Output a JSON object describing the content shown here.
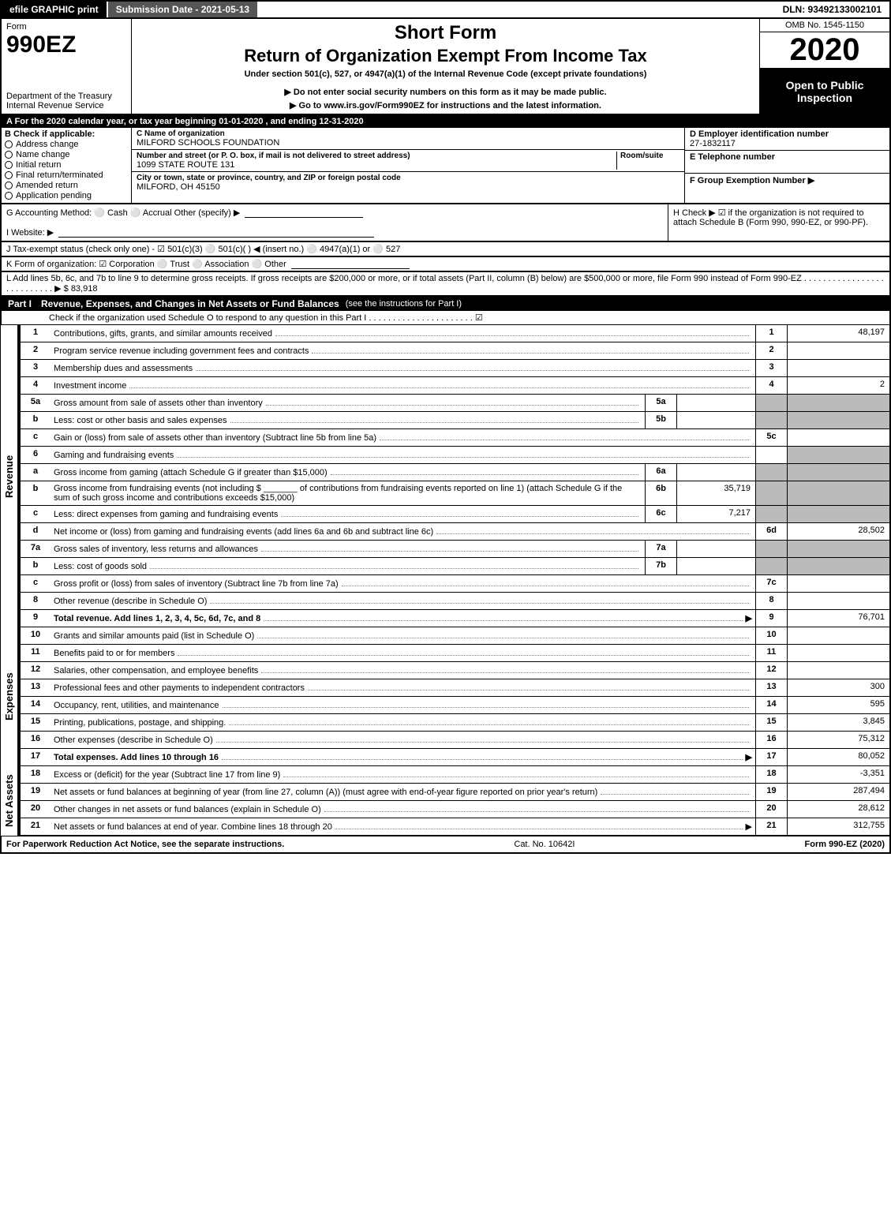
{
  "topbar": {
    "efile": "efile GRAPHIC print",
    "subdate_label": "Submission Date - 2021-05-13",
    "dln": "DLN: 93492133002101"
  },
  "header": {
    "form_word": "Form",
    "form_num": "990EZ",
    "dept": "Department of the Treasury",
    "irs": "Internal Revenue Service",
    "short": "Short Form",
    "title": "Return of Organization Exempt From Income Tax",
    "sub1": "Under section 501(c), 527, or 4947(a)(1) of the Internal Revenue Code (except private foundations)",
    "sub2": "▶ Do not enter social security numbers on this form as it may be made public.",
    "sub3": "▶ Go to www.irs.gov/Form990EZ for instructions and the latest information.",
    "omb": "OMB No. 1545-1150",
    "year": "2020",
    "open": "Open to Public Inspection"
  },
  "period": "A  For the 2020 calendar year, or tax year beginning 01-01-2020 , and ending 12-31-2020",
  "box_b": {
    "title": "B  Check if applicable:",
    "items": [
      "Address change",
      "Name change",
      "Initial return",
      "Final return/terminated",
      "Amended return",
      "Application pending"
    ]
  },
  "box_c": {
    "name_lbl": "C Name of organization",
    "name": "MILFORD SCHOOLS FOUNDATION",
    "addr_lbl": "Number and street (or P. O. box, if mail is not delivered to street address)",
    "room_lbl": "Room/suite",
    "addr": "1099 STATE ROUTE 131",
    "city_lbl": "City or town, state or province, country, and ZIP or foreign postal code",
    "city": "MILFORD, OH  45150"
  },
  "box_d": {
    "ein_lbl": "D Employer identification number",
    "ein": "27-1832117",
    "tel_lbl": "E Telephone number",
    "grp_lbl": "F Group Exemption Number  ▶"
  },
  "line_g": "G Accounting Method:   ⚪ Cash  ⚪ Accrual   Other (specify) ▶",
  "line_h": "H  Check ▶ ☑ if the organization is not required to attach Schedule B (Form 990, 990-EZ, or 990-PF).",
  "line_i": "I Website: ▶",
  "line_j": "J Tax-exempt status (check only one) - ☑ 501(c)(3) ⚪ 501(c)( ) ◀ (insert no.) ⚪ 4947(a)(1) or ⚪ 527",
  "line_k": "K Form of organization:   ☑ Corporation  ⚪ Trust  ⚪ Association  ⚪ Other",
  "line_l": "L Add lines 5b, 6c, and 7b to line 9 to determine gross receipts. If gross receipts are $200,000 or more, or if total assets (Part II, column (B) below) are $500,000 or more, file Form 990 instead of Form 990-EZ . . . . . . . . . . . . . . . . . . . . . . . . . . . ▶ $ 83,918",
  "part1": {
    "label": "Part I",
    "title": "Revenue, Expenses, and Changes in Net Assets or Fund Balances",
    "desc": "(see the instructions for Part I)",
    "schedO": "Check if the organization used Schedule O to respond to any question in this Part I . . . . . . . . . . . . . . . . . . . . . . ☑"
  },
  "sections": [
    {
      "side": "Revenue",
      "rows": [
        {
          "n": "1",
          "d": "Contributions, gifts, grants, and similar amounts received",
          "vn": "1",
          "v": "48,197"
        },
        {
          "n": "2",
          "d": "Program service revenue including government fees and contracts",
          "vn": "2",
          "v": ""
        },
        {
          "n": "3",
          "d": "Membership dues and assessments",
          "vn": "3",
          "v": ""
        },
        {
          "n": "4",
          "d": "Investment income",
          "vn": "4",
          "v": "2"
        },
        {
          "n": "5a",
          "d": "Gross amount from sale of assets other than inventory",
          "sn": "5a",
          "sv": "",
          "shade": true
        },
        {
          "n": "b",
          "d": "Less: cost or other basis and sales expenses",
          "sn": "5b",
          "sv": "",
          "shade": true
        },
        {
          "n": "c",
          "d": "Gain or (loss) from sale of assets other than inventory (Subtract line 5b from line 5a)",
          "vn": "5c",
          "v": ""
        },
        {
          "n": "6",
          "d": "Gaming and fundraising events",
          "shade": true,
          "blank": true
        },
        {
          "n": "a",
          "d": "Gross income from gaming (attach Schedule G if greater than $15,000)",
          "sn": "6a",
          "sv": "",
          "shade": true
        },
        {
          "n": "b",
          "d": "Gross income from fundraising events (not including $ _______ of contributions from fundraising events reported on line 1) (attach Schedule G if the sum of such gross income and contributions exceeds $15,000)",
          "sn": "6b",
          "sv": "35,719",
          "shade": true
        },
        {
          "n": "c",
          "d": "Less: direct expenses from gaming and fundraising events",
          "sn": "6c",
          "sv": "7,217",
          "shade": true
        },
        {
          "n": "d",
          "d": "Net income or (loss) from gaming and fundraising events (add lines 6a and 6b and subtract line 6c)",
          "vn": "6d",
          "v": "28,502"
        },
        {
          "n": "7a",
          "d": "Gross sales of inventory, less returns and allowances",
          "sn": "7a",
          "sv": "",
          "shade": true
        },
        {
          "n": "b",
          "d": "Less: cost of goods sold",
          "sn": "7b",
          "sv": "",
          "shade": true
        },
        {
          "n": "c",
          "d": "Gross profit or (loss) from sales of inventory (Subtract line 7b from line 7a)",
          "vn": "7c",
          "v": ""
        },
        {
          "n": "8",
          "d": "Other revenue (describe in Schedule O)",
          "vn": "8",
          "v": ""
        },
        {
          "n": "9",
          "d": "Total revenue. Add lines 1, 2, 3, 4, 5c, 6d, 7c, and 8",
          "vn": "9",
          "v": "76,701",
          "bold": true,
          "arrow": true
        }
      ]
    },
    {
      "side": "Expenses",
      "rows": [
        {
          "n": "10",
          "d": "Grants and similar amounts paid (list in Schedule O)",
          "vn": "10",
          "v": ""
        },
        {
          "n": "11",
          "d": "Benefits paid to or for members",
          "vn": "11",
          "v": ""
        },
        {
          "n": "12",
          "d": "Salaries, other compensation, and employee benefits",
          "vn": "12",
          "v": ""
        },
        {
          "n": "13",
          "d": "Professional fees and other payments to independent contractors",
          "vn": "13",
          "v": "300"
        },
        {
          "n": "14",
          "d": "Occupancy, rent, utilities, and maintenance",
          "vn": "14",
          "v": "595"
        },
        {
          "n": "15",
          "d": "Printing, publications, postage, and shipping.",
          "vn": "15",
          "v": "3,845"
        },
        {
          "n": "16",
          "d": "Other expenses (describe in Schedule O)",
          "vn": "16",
          "v": "75,312"
        },
        {
          "n": "17",
          "d": "Total expenses. Add lines 10 through 16",
          "vn": "17",
          "v": "80,052",
          "bold": true,
          "arrow": true
        }
      ]
    },
    {
      "side": "Net Assets",
      "rows": [
        {
          "n": "18",
          "d": "Excess or (deficit) for the year (Subtract line 17 from line 9)",
          "vn": "18",
          "v": "-3,351"
        },
        {
          "n": "19",
          "d": "Net assets or fund balances at beginning of year (from line 27, column (A)) (must agree with end-of-year figure reported on prior year's return)",
          "vn": "19",
          "v": "287,494",
          "preshade": true
        },
        {
          "n": "20",
          "d": "Other changes in net assets or fund balances (explain in Schedule O)",
          "vn": "20",
          "v": "28,612"
        },
        {
          "n": "21",
          "d": "Net assets or fund balances at end of year. Combine lines 18 through 20",
          "vn": "21",
          "v": "312,755",
          "arrow": true
        }
      ]
    }
  ],
  "footer": {
    "left": "For Paperwork Reduction Act Notice, see the separate instructions.",
    "mid": "Cat. No. 10642I",
    "right": "Form 990-EZ (2020)"
  }
}
